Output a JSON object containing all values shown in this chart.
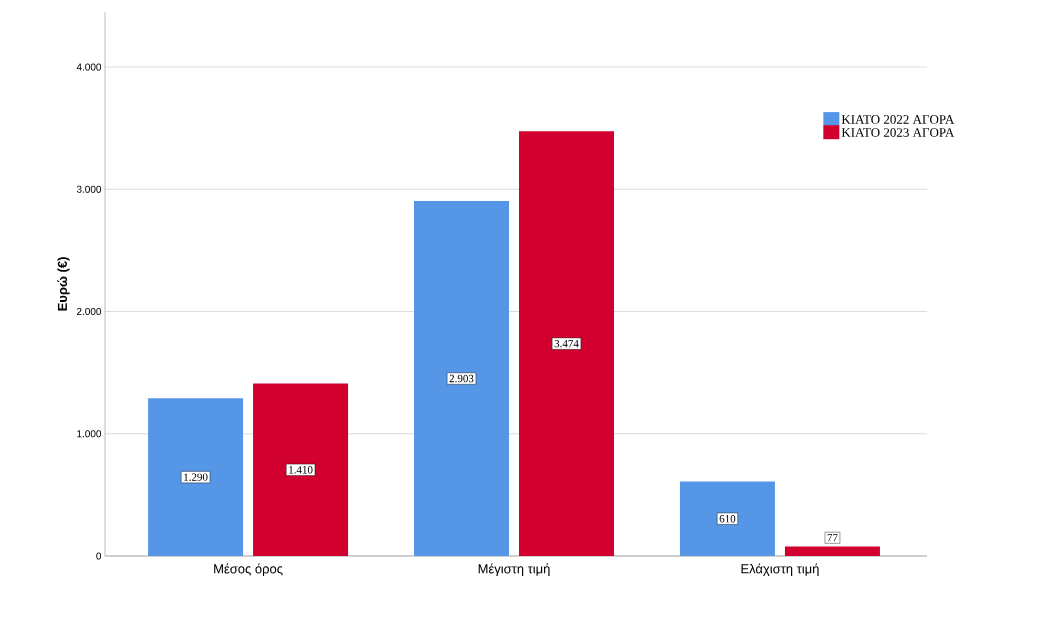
{
  "chart_data": {
    "type": "bar",
    "ylabel": "Ευρώ (€)",
    "categories": [
      "Μέσος όρος",
      "Μέγιστη τιμή",
      "Ελάχιστη τιμή"
    ],
    "series": [
      {
        "name": "ΚΙΑΤΟ 2022 ΑΓΟΡΑ",
        "color": "#5596e6",
        "values": [
          1290,
          2903,
          610
        ],
        "value_labels": [
          "1.290",
          "2.903",
          "610"
        ]
      },
      {
        "name": "ΚΙΑΤΟ 2023 ΑΓΟΡΑ",
        "color": "#d2002f",
        "values": [
          1410,
          3474,
          77
        ],
        "value_labels": [
          "1.410",
          "3.474",
          "77"
        ]
      }
    ],
    "ylim": [
      0,
      4450
    ],
    "yticks": [
      {
        "value": 0,
        "label": "0"
      },
      {
        "value": 1000,
        "label": "1.000"
      },
      {
        "value": 2000,
        "label": "2.000"
      },
      {
        "value": 3000,
        "label": "3.000"
      },
      {
        "value": 4000,
        "label": "4.000"
      }
    ],
    "grid": "y",
    "legend": "top right"
  }
}
